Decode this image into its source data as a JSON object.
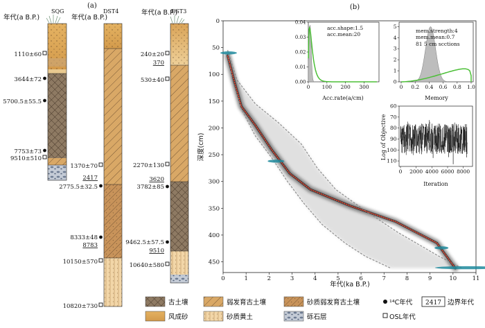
{
  "panel_a": {
    "label": "(a)",
    "columns": [
      {
        "name": "SQG",
        "age_header": "年代(a B.P.)"
      },
      {
        "name": "DST4",
        "age_header": "年代(a B.P.)"
      },
      {
        "name": "DST3",
        "age_header": "年代(a B.P.)"
      }
    ],
    "sqg_ages": [
      {
        "text": "1110±60",
        "marker": "osl"
      },
      {
        "text": "3644±72",
        "marker": "c14"
      },
      {
        "text": "5700.5±55.5",
        "marker": "c14"
      },
      {
        "text": "7753±73",
        "marker": "c14"
      },
      {
        "text": "9510±510",
        "marker": "osl"
      }
    ],
    "dst4_ages": [
      {
        "text": "1370±70",
        "marker": "osl"
      },
      {
        "text": "2417",
        "marker": "boundary"
      },
      {
        "text": "2775.5±32.5",
        "marker": "c14"
      },
      {
        "text": "8333±48",
        "marker": "c14"
      },
      {
        "text": "8783",
        "marker": "boundary"
      },
      {
        "text": "10150±570",
        "marker": "osl"
      },
      {
        "text": "10820±730",
        "marker": "osl"
      }
    ],
    "dst3_ages": [
      {
        "text": "240±20",
        "marker": "osl"
      },
      {
        "text": "370",
        "marker": "boundary"
      },
      {
        "text": "530±40",
        "marker": "osl"
      },
      {
        "text": "2270±130",
        "marker": "osl"
      },
      {
        "text": "3620",
        "marker": "boundary"
      },
      {
        "text": "3782±85",
        "marker": "c14"
      },
      {
        "text": "9462.5±57.5",
        "marker": "c14"
      },
      {
        "text": "9510",
        "marker": "boundary"
      },
      {
        "text": "10640±580",
        "marker": "osl"
      }
    ]
  },
  "legend": {
    "paleosol": "古土壤",
    "weak_paleosol": "弱发育古土壤",
    "sandy_weak_paleosol": "砂质弱发育古土壤",
    "c14_label": "¹⁴C年代",
    "boundary_sample": "2417",
    "boundary_label": "边界年代",
    "aeolian_sand": "风成砂",
    "sandy_loess": "砂质黄土",
    "gravel": "砾石层",
    "osl_label": "OSL年代"
  },
  "chart_data": [
    {
      "type": "line",
      "title": "(b)",
      "xlabel": "年代(ka B.P.)",
      "ylabel": "深度(cm)",
      "xlim": [
        0,
        11
      ],
      "ylim": [
        470,
        0
      ],
      "xticks": [
        0,
        1,
        2,
        3,
        4,
        5,
        6,
        7,
        8,
        9,
        10,
        11
      ],
      "yticks": [
        0,
        50,
        100,
        150,
        200,
        250,
        300,
        350,
        400,
        450
      ],
      "series": [
        {
          "name": "median age",
          "color": "#e8412b",
          "x": [
            0.2,
            0.5,
            0.8,
            1.4,
            2.1,
            2.9,
            3.8,
            5.5,
            7.5,
            9.3,
            10.1
          ],
          "y": [
            65,
            115,
            160,
            195,
            240,
            285,
            315,
            345,
            375,
            415,
            462
          ]
        },
        {
          "name": "95% range lower",
          "color": "#888888",
          "x": [
            0.2,
            0.6,
            1.4,
            2.4,
            3.4,
            4.1,
            4.9,
            6.2,
            7.6,
            9.4,
            10.4
          ],
          "y": [
            55,
            110,
            155,
            190,
            230,
            275,
            315,
            355,
            395,
            440,
            462
          ]
        },
        {
          "name": "95% range upper",
          "color": "#888888",
          "x": [
            0.2,
            0.4,
            0.8,
            1.4,
            2.1,
            2.8,
            3.5,
            4.3,
            5.3,
            6.2,
            7.3
          ],
          "y": [
            55,
            110,
            165,
            215,
            255,
            300,
            340,
            380,
            415,
            440,
            462
          ]
        }
      ],
      "dates": [
        {
          "age": 0.24,
          "depth": 60
        },
        {
          "age": 2.3,
          "depth": 262
        },
        {
          "age": 9.5,
          "depth": 424
        },
        {
          "age": 10.6,
          "depth": 461
        }
      ]
    },
    {
      "type": "area",
      "xlabel": "Acc.rate(a/cm)",
      "xlim": [
        0,
        380
      ],
      "ylim": [
        0,
        0.04
      ],
      "xticks": [
        0,
        100,
        200,
        300
      ],
      "yticks": [
        0.0,
        0.01,
        0.02,
        0.03,
        0.04
      ],
      "annotations": [
        "acc.shape:1.5",
        "acc.mean:20"
      ],
      "prior": {
        "shape": 1.5,
        "mean": 20
      }
    },
    {
      "type": "area",
      "xlabel": "Memory",
      "xlim": [
        0,
        1
      ],
      "ylim": [
        0,
        5.4
      ],
      "xticks": [
        0,
        0.2,
        0.4,
        0.6,
        0.8,
        1.0
      ],
      "yticks": [
        0,
        1,
        2,
        3,
        4,
        5
      ],
      "annotations": [
        "mem.strength:4",
        "mem.mean:0.7",
        "81 5 cm scctions"
      ],
      "prior": {
        "strength": 4,
        "mean": 0.7
      }
    },
    {
      "type": "line",
      "xlabel": "Iteration",
      "ylabel": "Log of Objective",
      "xlim": [
        0,
        9000
      ],
      "ylim": [
        115,
        60
      ],
      "xticks": [
        0,
        2000,
        4000,
        6000,
        8000
      ],
      "yticks": [
        60,
        70,
        80,
        90,
        100,
        110
      ],
      "trace": {
        "iterations": 8500,
        "center": 90,
        "spread": 14
      }
    }
  ]
}
